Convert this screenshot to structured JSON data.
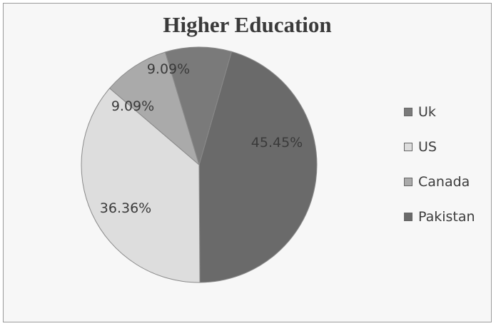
{
  "chart_data": {
    "type": "pie",
    "title": "Higher Education",
    "categories": [
      "Uk",
      "US",
      "Canada",
      "Pakistan"
    ],
    "values": [
      9.09,
      36.36,
      9.09,
      45.45
    ],
    "labels": [
      "9.09%",
      "36.36%",
      "9.09%",
      "45.45%"
    ],
    "colors": [
      "#7a7a7a",
      "#dddddd",
      "#aaaaaa",
      "#6a6a6a"
    ],
    "legend": "right"
  }
}
